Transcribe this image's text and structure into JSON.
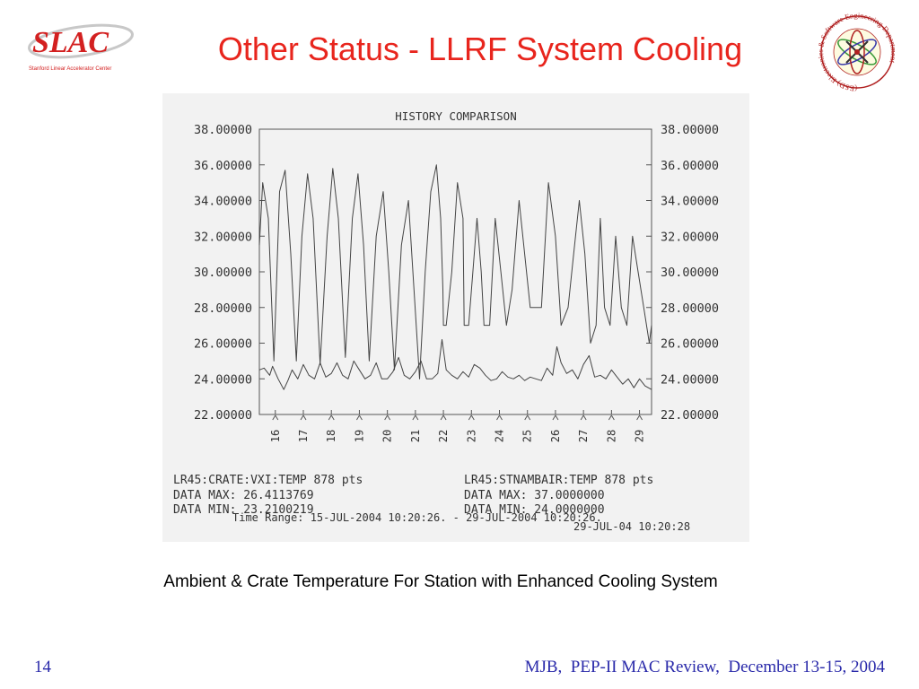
{
  "slide": {
    "title": "Other Status - LLRF System Cooling",
    "caption": "Ambient & Crate Temperature For Station with Enhanced Cooling System",
    "number": "14",
    "footer": "MJB,  PEP-II MAC Review,  December 13-15, 2004",
    "title_color": "#e8251d",
    "footer_color": "#2a2aaa"
  },
  "logos": {
    "slac_text": "SLAC",
    "slac_subtext": "Stanford Linear Accelerator Center",
    "esd_text": "(ESD) Electronics & Software Engineering Department"
  },
  "chart_data": {
    "type": "line",
    "title": "HISTORY COMPARISON",
    "ylim": [
      22,
      38
    ],
    "y_tick_labels": [
      "38.00000",
      "36.00000",
      "34.00000",
      "32.00000",
      "30.00000",
      "28.00000",
      "26.00000",
      "24.00000",
      "22.00000"
    ],
    "y_ticks": [
      38,
      36,
      34,
      32,
      30,
      28,
      26,
      24,
      22
    ],
    "x_tick_labels": [
      "16",
      "17",
      "18",
      "19",
      "20",
      "21",
      "22",
      "23",
      "24",
      "25",
      "26",
      "27",
      "28",
      "29"
    ],
    "xlim": [
      15.43,
      29.43
    ],
    "series": [
      {
        "name": "LR45:STNAMBAIR:TEMP 878 pts",
        "data_max": "37.0000000",
        "data_min": "24.0000000",
        "x": [
          15.43,
          15.55,
          15.75,
          15.95,
          16.15,
          16.35,
          16.55,
          16.75,
          16.95,
          17.15,
          17.35,
          17.6,
          17.85,
          18.05,
          18.25,
          18.5,
          18.75,
          18.95,
          19.15,
          19.35,
          19.6,
          19.85,
          20.05,
          20.25,
          20.5,
          20.75,
          20.95,
          21.15,
          21.35,
          21.55,
          21.75,
          21.9,
          21.98,
          22.0,
          22.1,
          22.3,
          22.5,
          22.7,
          22.74,
          22.9,
          23.05,
          23.2,
          23.35,
          23.45,
          23.65,
          23.85,
          24.05,
          24.25,
          24.45,
          24.7,
          24.9,
          25.1,
          25.3,
          25.5,
          25.75,
          26.0,
          26.2,
          26.45,
          26.65,
          26.85,
          27.05,
          27.25,
          27.45,
          27.6,
          27.75,
          27.95,
          28.15,
          28.35,
          28.55,
          28.75,
          28.95,
          29.15,
          29.35,
          29.43
        ],
        "values": [
          31.5,
          35.0,
          33.0,
          25.0,
          34.5,
          35.7,
          31.0,
          25.0,
          32.0,
          35.5,
          33.0,
          24.8,
          32.0,
          35.8,
          33.0,
          25.2,
          33.0,
          35.5,
          31.5,
          25.0,
          32.0,
          34.5,
          30.0,
          24.5,
          31.5,
          34.0,
          29.0,
          24.0,
          30.0,
          34.5,
          36.0,
          33.0,
          29.0,
          27.0,
          27.0,
          30.0,
          35.0,
          33.0,
          27.0,
          27.0,
          30.0,
          33.0,
          30.0,
          27.0,
          27.0,
          33.0,
          30.0,
          27.0,
          29.0,
          34.0,
          31.0,
          28.0,
          28.0,
          28.0,
          35.0,
          32.0,
          27.0,
          28.0,
          31.0,
          34.0,
          31.0,
          26.0,
          27.0,
          33.0,
          28.0,
          27.0,
          32.0,
          28.0,
          27.0,
          32.0,
          30.0,
          28.0,
          26.0,
          27.0
        ]
      },
      {
        "name": "LR45:CRATE:VXI:TEMP 878 pts",
        "data_max": "26.4113769",
        "data_min": "23.2100219",
        "x": [
          15.43,
          15.6,
          15.8,
          15.9,
          16.1,
          16.3,
          16.45,
          16.6,
          16.8,
          17.0,
          17.2,
          17.4,
          17.6,
          17.8,
          18.0,
          18.2,
          18.4,
          18.6,
          18.8,
          19.0,
          19.2,
          19.4,
          19.6,
          19.8,
          20.0,
          20.2,
          20.4,
          20.6,
          20.8,
          21.0,
          21.2,
          21.4,
          21.6,
          21.8,
          21.95,
          22.1,
          22.3,
          22.5,
          22.7,
          22.9,
          23.1,
          23.3,
          23.5,
          23.7,
          23.9,
          24.1,
          24.3,
          24.5,
          24.7,
          24.9,
          25.1,
          25.3,
          25.5,
          25.7,
          25.9,
          26.05,
          26.2,
          26.4,
          26.6,
          26.8,
          27.0,
          27.2,
          27.4,
          27.6,
          27.8,
          28.0,
          28.2,
          28.4,
          28.6,
          28.8,
          29.0,
          29.2,
          29.43
        ],
        "values": [
          24.5,
          24.6,
          24.2,
          24.7,
          24.0,
          23.4,
          23.9,
          24.5,
          24.0,
          24.8,
          24.2,
          24.0,
          24.9,
          24.1,
          24.3,
          24.9,
          24.2,
          24.0,
          25.0,
          24.5,
          24.0,
          24.2,
          24.9,
          24.0,
          24.0,
          24.4,
          25.2,
          24.2,
          24.0,
          24.4,
          25.0,
          24.0,
          24.0,
          24.3,
          26.2,
          24.5,
          24.2,
          24.0,
          24.4,
          24.1,
          24.8,
          24.6,
          24.2,
          23.9,
          24.0,
          24.4,
          24.1,
          24.0,
          24.2,
          23.9,
          24.1,
          24.0,
          23.9,
          24.6,
          24.2,
          25.8,
          24.9,
          24.3,
          24.5,
          24.0,
          24.8,
          25.3,
          24.1,
          24.2,
          24.0,
          24.5,
          24.1,
          23.7,
          24.0,
          23.5,
          24.0,
          23.6,
          23.4
        ]
      }
    ],
    "time_range": "Time Range: 15-JUL-2004 10:20:26. - 29-JUL-2004 10:20:26.",
    "timestamp": "29-JUL-04 10:20:28"
  }
}
